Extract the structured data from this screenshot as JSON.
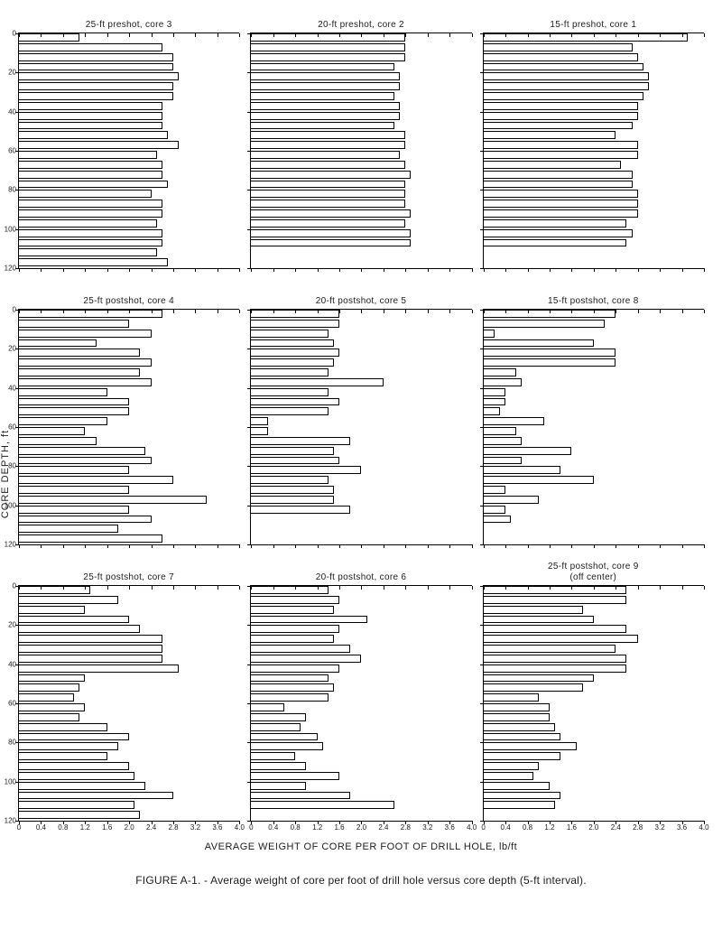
{
  "figure": {
    "caption_label": "FIGURE A-1.",
    "caption_text": " - Average weight of core per foot of drill hole versus core depth (5-ft interval).",
    "xlabel": "AVERAGE WEIGHT OF CORE PER FOOT OF DRILL HOLE, lb/ft",
    "ylabel": "CORE DEPTH, ft",
    "xlim": [
      0,
      4.0
    ],
    "ylim": [
      0,
      120
    ],
    "xticks": [
      0,
      0.4,
      0.8,
      1.2,
      1.6,
      2.0,
      2.4,
      2.8,
      3.2,
      3.6,
      4.0
    ],
    "yticks": [
      0,
      20,
      40,
      60,
      80,
      100,
      120
    ],
    "bar_border": "#000000",
    "bar_fill": "#ffffff",
    "axis_color": "#000000",
    "bg_color": "#ffffff",
    "title_fontsize": 10,
    "tick_fontsize": 8,
    "label_fontsize": 11,
    "caption_fontsize": 12,
    "bar_interval_ft": 5,
    "panels": [
      {
        "title": "25-ft preshot, core 3",
        "values": [
          1.1,
          2.6,
          2.8,
          2.8,
          2.9,
          2.8,
          2.8,
          2.6,
          2.6,
          2.6,
          2.7,
          2.9,
          2.5,
          2.6,
          2.6,
          2.7,
          2.4,
          2.6,
          2.6,
          2.5,
          2.6,
          2.6,
          2.5,
          2.7
        ]
      },
      {
        "title": "20-ft preshot, core 2",
        "values": [
          2.8,
          2.8,
          2.8,
          2.6,
          2.7,
          2.7,
          2.6,
          2.7,
          2.7,
          2.6,
          2.8,
          2.8,
          2.7,
          2.8,
          2.9,
          2.8,
          2.8,
          2.8,
          2.9,
          2.8,
          2.9,
          2.9
        ]
      },
      {
        "title": "15-ft preshot, core 1",
        "values": [
          3.7,
          2.7,
          2.8,
          2.9,
          3.0,
          3.0,
          2.9,
          2.8,
          2.8,
          2.7,
          2.4,
          2.8,
          2.8,
          2.5,
          2.7,
          2.7,
          2.8,
          2.8,
          2.8,
          2.6,
          2.7,
          2.6
        ]
      },
      {
        "title": "25-ft postshot, core 4",
        "values": [
          2.6,
          2.0,
          2.4,
          1.4,
          2.2,
          2.4,
          2.2,
          2.4,
          1.6,
          2.0,
          2.0,
          1.6,
          1.2,
          1.4,
          2.3,
          2.4,
          2.0,
          2.8,
          2.0,
          3.4,
          2.0,
          2.4,
          1.8,
          2.6
        ]
      },
      {
        "title": "20-ft postshot, core 5",
        "values": [
          1.6,
          1.6,
          1.4,
          1.5,
          1.6,
          1.5,
          1.4,
          2.4,
          1.4,
          1.6,
          1.4,
          0.3,
          0.3,
          1.8,
          1.5,
          1.6,
          2.0,
          1.4,
          1.5,
          1.5,
          1.8
        ]
      },
      {
        "title": "15-ft postshot, core 8",
        "values": [
          2.4,
          2.2,
          0.2,
          2.0,
          2.4,
          2.4,
          0.6,
          0.7,
          0.4,
          0.4,
          0.3,
          1.1,
          0.6,
          0.7,
          1.6,
          0.7,
          1.4,
          2.0,
          0.4,
          1.0,
          0.4,
          0.5
        ]
      },
      {
        "title": "25-ft postshot, core 7",
        "values": [
          1.3,
          1.8,
          1.2,
          2.0,
          2.2,
          2.6,
          2.6,
          2.6,
          2.9,
          1.2,
          1.1,
          1.0,
          1.2,
          1.1,
          1.6,
          2.0,
          1.8,
          1.6,
          2.0,
          2.1,
          2.3,
          2.8,
          2.1,
          2.2
        ]
      },
      {
        "title": "20-ft postshot, core 6",
        "values": [
          1.4,
          1.6,
          1.5,
          2.1,
          1.6,
          1.5,
          1.8,
          2.0,
          1.6,
          1.4,
          1.5,
          1.4,
          0.6,
          1.0,
          0.9,
          1.2,
          1.3,
          0.8,
          1.0,
          1.6,
          1.0,
          1.8,
          2.6
        ]
      },
      {
        "title": "25-ft postshot, core 9\n(off center)",
        "values": [
          2.6,
          2.6,
          1.8,
          2.0,
          2.6,
          2.8,
          2.4,
          2.6,
          2.6,
          2.0,
          1.8,
          1.0,
          1.2,
          1.2,
          1.3,
          1.4,
          1.7,
          1.4,
          1.0,
          0.9,
          1.2,
          1.4,
          1.3
        ]
      }
    ]
  }
}
